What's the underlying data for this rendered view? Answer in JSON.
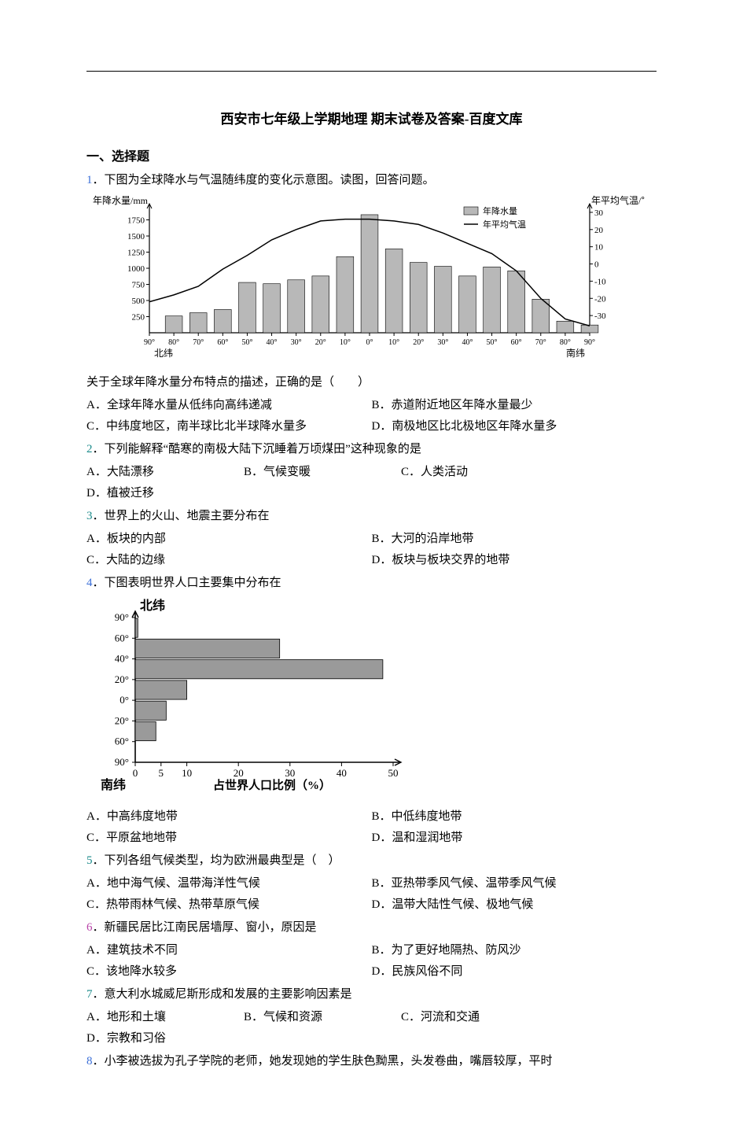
{
  "title": "西安市七年级上学期地理 期末试卷及答案-百度文库",
  "section1": "一、选择题",
  "q1": {
    "num": "1",
    "text": "．下图为全球降水与气温随纬度的变化示意图。读图，回答问题。",
    "stem_after": "关于全球年降水量分布特点的描述，正确的是（　　）",
    "A": "A．全球年降水量从低纬向高纬递减",
    "B": "B．赤道附近地区年降水量最少",
    "C": "C．中纬度地区，南半球比北半球降水量多",
    "D": "D．南极地区比北极地区年降水量多"
  },
  "chart1": {
    "y_label": "年降水量/mm",
    "y2_label": "年平均气温/℃",
    "legend_bar": "年降水量",
    "legend_line": "年平均气温",
    "x_north": "北纬",
    "x_south": "南纬",
    "y_ticks": [
      "250",
      "500",
      "750",
      "1000",
      "1250",
      "1500",
      "1750"
    ],
    "y2_ticks": [
      "-30",
      "-20",
      "-10",
      "0",
      "10",
      "20",
      "30"
    ],
    "x_ticks": [
      "90°",
      "80°",
      "70°",
      "60°",
      "50°",
      "40°",
      "30°",
      "20°",
      "10°",
      "0°",
      "10°",
      "20°",
      "30°",
      "40°",
      "50°",
      "60°",
      "70°",
      "80°",
      "90°"
    ],
    "bar_values": [
      0,
      260,
      310,
      360,
      780,
      760,
      820,
      880,
      1180,
      1830,
      1300,
      1090,
      1030,
      880,
      1020,
      960,
      520,
      180,
      120
    ],
    "temp_values_north": [
      -22,
      -18,
      -13,
      -3,
      5,
      14,
      20,
      25,
      26,
      26
    ],
    "temp_values_south": [
      26,
      25,
      23,
      18,
      12,
      6,
      -4,
      -20,
      -32,
      -36
    ],
    "bar_color": "#b8b8b8",
    "line_color": "#000000",
    "axis_color": "#000000",
    "bg": "#ffffff"
  },
  "q2": {
    "num": "2",
    "text": "．下列能解释“酷寒的南极大陆下沉睡着万顷煤田”这种现象的是",
    "A": "A．大陆漂移",
    "B": "B．气候变暖",
    "C": "C．人类活动",
    "D": "D．植被迁移"
  },
  "q3": {
    "num": "3",
    "text": "．世界上的火山、地震主要分布在",
    "A": "A．板块的内部",
    "B": "B．大河的沿岸地带",
    "C": "C．大陆的边缘",
    "D": "D．板块与板块交界的地带"
  },
  "q4": {
    "num": "4",
    "text": "．下图表明世界人口主要集中分布在",
    "A": "A．中高纬度地带",
    "B": "B．中低纬度地带",
    "C": "C．平原盆地地带",
    "D": "D．温和湿润地带"
  },
  "chart2": {
    "y_label_top": "北纬",
    "y_label_bottom": "南纬",
    "x_label": "占世界人口比例（%）",
    "y_ticks": [
      "90°",
      "60°",
      "40°",
      "20°",
      "0°",
      "20°",
      "60°",
      "90°"
    ],
    "x_ticks": [
      "0",
      "5",
      "10",
      "20",
      "30",
      "40",
      "50"
    ],
    "bars": [
      {
        "label": "60-90N",
        "value": 0.5
      },
      {
        "label": "40-60N",
        "value": 28
      },
      {
        "label": "20-40N",
        "value": 48
      },
      {
        "label": "0-20N",
        "value": 10
      },
      {
        "label": "0-20S",
        "value": 6
      },
      {
        "label": "20-60S",
        "value": 4
      },
      {
        "label": "60-90S",
        "value": 0
      }
    ],
    "bar_color": "#9a9a9a",
    "axis_color": "#000000"
  },
  "q5": {
    "num": "5",
    "text": "．下列各组气候类型，均为欧洲最典型是（　）",
    "A": "A．地中海气候、温带海洋性气候",
    "B": "B．亚热带季风气候、温带季风气候",
    "C": "C．热带雨林气候、热带草原气候",
    "D": "D．温带大陆性气候、极地气候"
  },
  "q6": {
    "num": "6",
    "text": "．新疆民居比江南民居墙厚、窗小，原因是",
    "A": "A．建筑技术不同",
    "B": "B．为了更好地隔热、防风沙",
    "C": "C．该地降水较多",
    "D": "D．民族风俗不同"
  },
  "q7": {
    "num": "7",
    "text": "．意大利水城威尼斯形成和发展的主要影响因素是",
    "A": "A．地形和土壤",
    "B": "B．气候和资源",
    "C": "C．河流和交通",
    "D": "D．宗教和习俗"
  },
  "q8": {
    "num": "8",
    "text": "．小李被选拔为孔子学院的老师，她发现她的学生肤色黝黑，头发卷曲，嘴唇较厚，平时"
  }
}
